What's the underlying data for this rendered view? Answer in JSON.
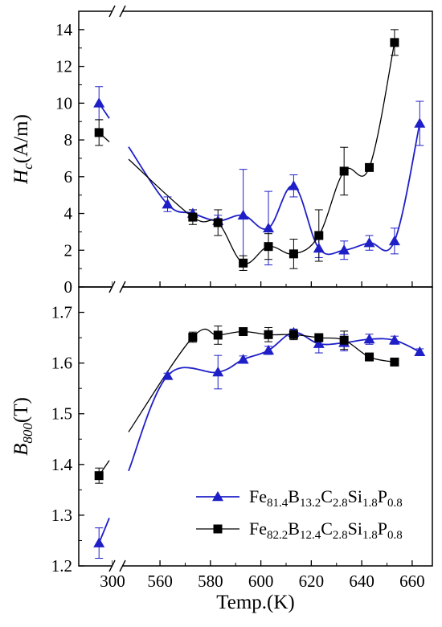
{
  "chart_data": {
    "type": "line",
    "x_axis": {
      "label": "Temp.(K)",
      "tick_labels": [
        "300",
        "560",
        "580",
        "600",
        "620",
        "640",
        "660"
      ],
      "broken": true,
      "segments": [
        [
          295,
          300
        ],
        [
          545,
          668
        ]
      ]
    },
    "panels": [
      {
        "id": "top",
        "ylabel": {
          "main": "H",
          "sub": "c",
          "rest": "(A/m)"
        },
        "ylim": [
          0,
          15
        ],
        "yticks": [
          0,
          2,
          4,
          6,
          8,
          10,
          12,
          14
        ],
        "y_tick_labels": [
          "0",
          "2",
          "4",
          "6",
          "8",
          "10",
          "12",
          "14"
        ],
        "series": [
          {
            "name_parts": [
              [
                "Fe",
                ""
              ],
              [
                "81.4",
                "sub"
              ],
              [
                "B",
                ""
              ],
              [
                "13.2",
                "sub"
              ],
              [
                "C",
                ""
              ],
              [
                "2.8",
                "sub"
              ],
              [
                "Si",
                ""
              ],
              [
                "1.8",
                "sub"
              ],
              [
                "P",
                ""
              ],
              [
                "0.8",
                "sub"
              ]
            ],
            "marker": "triangle",
            "color": "#1f1fc8",
            "points": [
              {
                "x": 298,
                "y": 10.0,
                "err": 0.9
              },
              {
                "x": 563,
                "y": 4.5,
                "err": 0.4
              },
              {
                "x": 573,
                "y": 4.0,
                "err": 0.2
              },
              {
                "x": 583,
                "y": 3.6,
                "err": 0.3
              },
              {
                "x": 593,
                "y": 3.9,
                "err": 2.5
              },
              {
                "x": 603,
                "y": 3.2,
                "err": 2.0
              },
              {
                "x": 613,
                "y": 5.5,
                "err": 0.6
              },
              {
                "x": 623,
                "y": 2.1,
                "err": 0.5
              },
              {
                "x": 633,
                "y": 2.0,
                "err": 0.5
              },
              {
                "x": 643,
                "y": 2.4,
                "err": 0.4
              },
              {
                "x": 653,
                "y": 2.5,
                "err": 0.7
              },
              {
                "x": 663,
                "y": 8.9,
                "err": 1.2
              }
            ]
          },
          {
            "name_parts": [
              [
                "Fe",
                ""
              ],
              [
                "82.2",
                "sub"
              ],
              [
                "B",
                ""
              ],
              [
                "12.4",
                "sub"
              ],
              [
                "C",
                ""
              ],
              [
                "2.8",
                "sub"
              ],
              [
                "Si",
                ""
              ],
              [
                "1.8",
                "sub"
              ],
              [
                "P",
                ""
              ],
              [
                "0.8",
                "sub"
              ]
            ],
            "marker": "square",
            "color": "#000000",
            "points": [
              {
                "x": 298,
                "y": 8.4,
                "err": 0.7
              },
              {
                "x": 573,
                "y": 3.8,
                "err": 0.4
              },
              {
                "x": 583,
                "y": 3.5,
                "err": 0.7
              },
              {
                "x": 593,
                "y": 1.3,
                "err": 0.4
              },
              {
                "x": 603,
                "y": 2.2,
                "err": 0.7
              },
              {
                "x": 613,
                "y": 1.8,
                "err": 0.8
              },
              {
                "x": 623,
                "y": 2.8,
                "err": 1.4
              },
              {
                "x": 633,
                "y": 6.3,
                "err": 1.3
              },
              {
                "x": 643,
                "y": 6.5,
                "err": 0
              },
              {
                "x": 653,
                "y": 13.3,
                "err": 0.7
              }
            ]
          }
        ]
      },
      {
        "id": "bottom",
        "ylabel": {
          "main": "B",
          "sub": "800",
          "rest": "(T)"
        },
        "ylim": [
          1.2,
          1.75
        ],
        "yticks": [
          1.2,
          1.3,
          1.4,
          1.5,
          1.6,
          1.7
        ],
        "y_tick_labels": [
          "1.2",
          "1.3",
          "1.4",
          "1.5",
          "1.6",
          "1.7"
        ],
        "series": [
          {
            "name_parts": [
              [
                "Fe",
                ""
              ],
              [
                "81.4",
                "sub"
              ],
              [
                "B",
                ""
              ],
              [
                "13.2",
                "sub"
              ],
              [
                "C",
                ""
              ],
              [
                "2.8",
                "sub"
              ],
              [
                "Si",
                ""
              ],
              [
                "1.8",
                "sub"
              ],
              [
                "P",
                ""
              ],
              [
                "0.8",
                "sub"
              ]
            ],
            "marker": "triangle",
            "color": "#1f1fc8",
            "points": [
              {
                "x": 298,
                "y": 1.245,
                "err": 0.03
              },
              {
                "x": 563,
                "y": 1.575,
                "err": 0.005
              },
              {
                "x": 583,
                "y": 1.582,
                "err": 0.033
              },
              {
                "x": 593,
                "y": 1.607,
                "err": 0.007
              },
              {
                "x": 603,
                "y": 1.625,
                "err": 0.008
              },
              {
                "x": 613,
                "y": 1.66,
                "err": 0.007
              },
              {
                "x": 623,
                "y": 1.638,
                "err": 0.018
              },
              {
                "x": 633,
                "y": 1.64,
                "err": 0.016
              },
              {
                "x": 643,
                "y": 1.647,
                "err": 0.01
              },
              {
                "x": 653,
                "y": 1.645,
                "err": 0.008
              },
              {
                "x": 663,
                "y": 1.622,
                "err": 0.006
              }
            ]
          },
          {
            "name_parts": [
              [
                "Fe",
                ""
              ],
              [
                "82.2",
                "sub"
              ],
              [
                "B",
                ""
              ],
              [
                "12.4",
                "sub"
              ],
              [
                "C",
                ""
              ],
              [
                "2.8",
                "sub"
              ],
              [
                "Si",
                ""
              ],
              [
                "1.8",
                "sub"
              ],
              [
                "P",
                ""
              ],
              [
                "0.8",
                "sub"
              ]
            ],
            "marker": "square",
            "color": "#000000",
            "points": [
              {
                "x": 298,
                "y": 1.378,
                "err": 0.015
              },
              {
                "x": 573,
                "y": 1.651,
                "err": 0.01
              },
              {
                "x": 583,
                "y": 1.655,
                "err": 0.018
              },
              {
                "x": 593,
                "y": 1.662,
                "err": 0.007
              },
              {
                "x": 603,
                "y": 1.656,
                "err": 0.014
              },
              {
                "x": 613,
                "y": 1.656,
                "err": 0.01
              },
              {
                "x": 623,
                "y": 1.65,
                "err": 0.008
              },
              {
                "x": 633,
                "y": 1.645,
                "err": 0.018
              },
              {
                "x": 643,
                "y": 1.612,
                "err": 0.005
              },
              {
                "x": 653,
                "y": 1.602,
                "err": 0.005
              }
            ]
          }
        ]
      }
    ],
    "legend": {
      "placement": "bottom-right of lower panel"
    },
    "grid": false
  }
}
